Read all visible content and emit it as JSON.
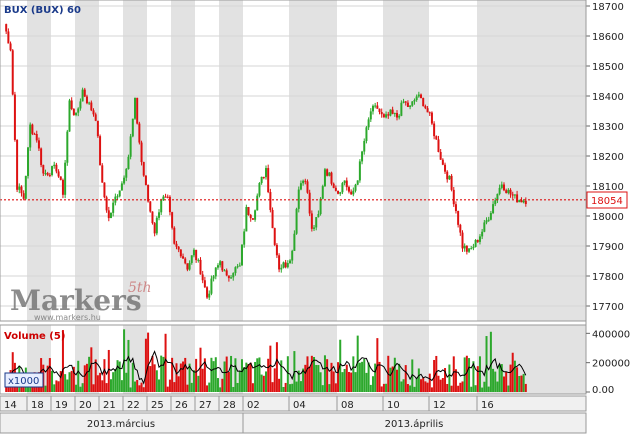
{
  "header": {
    "title": "BUX (BUX) 60"
  },
  "volume_panel": {
    "title": "Volume (5)",
    "scale_badge": "x1000"
  },
  "watermark": {
    "brand": "Markers",
    "sup": "5th",
    "url": "www.markers.hu"
  },
  "current_price_label": "18054",
  "colors": {
    "up": "#2ca82c",
    "down": "#dd1111",
    "ma": "#000000",
    "title": "#1a3a8a",
    "volume_title": "#cc0000",
    "band": "#e2e2e2"
  },
  "x_axis": {
    "day_labels": [
      "14",
      "18",
      "19",
      "20",
      "21",
      "22",
      "25",
      "26",
      "27",
      "28",
      "02",
      "04",
      "08",
      "10",
      "12",
      "16"
    ],
    "month_labels": [
      "2013.március",
      "2013.április"
    ]
  },
  "chart_data": [
    {
      "type": "candlestick",
      "title": "BUX (BUX) 60",
      "interval": "60 min",
      "yaxis": {
        "ticks": [
          17700,
          17800,
          17900,
          18000,
          18100,
          18200,
          18300,
          18400,
          18500,
          18600,
          18700
        ],
        "ylim": [
          17650,
          18720
        ],
        "position": "right"
      },
      "last_price": 18054,
      "last_price_line": "dotted red",
      "grid": true,
      "session_close": [
        [
          18640,
          18560,
          18100,
          18060
        ],
        [
          18300,
          18260,
          18140,
          18150
        ],
        [
          18160,
          18080,
          18380,
          18330
        ],
        [
          18420,
          18370,
          18330,
          18100
        ],
        [
          17990,
          18060,
          18110,
          18200
        ],
        [
          18380,
          18180,
          18050,
          17950
        ],
        [
          18060,
          18050,
          17900,
          17880
        ],
        [
          17830,
          17880,
          17820,
          17730
        ],
        [
          17800,
          17850,
          17790,
          17820
        ],
        [
          17830,
          18020,
          18000,
          18100
        ],
        [
          18160,
          17960,
          17830,
          17840
        ],
        [
          17880,
          18100,
          18130,
          17950
        ],
        [
          18000,
          18160,
          18120,
          18080
        ],
        [
          18120,
          18060,
          18130,
          18250
        ],
        [
          18350,
          18360,
          18320,
          18340
        ],
        [
          18330,
          18380,
          18360,
          18400
        ],
        [
          18380,
          18330,
          18250,
          18170
        ],
        [
          18120,
          18020,
          17900,
          17880
        ],
        [
          17910,
          17950,
          18000,
          18060
        ],
        [
          18110,
          18080,
          18060,
          18054
        ]
      ]
    },
    {
      "type": "bar",
      "title": "Volume (5)",
      "unit": "x1000",
      "yaxis": {
        "ticks": [
          0,
          200000,
          400000
        ],
        "tick_labels": [
          "0.00",
          "200000",
          "400000"
        ],
        "ylim": [
          0,
          450000
        ]
      },
      "ma_series": "Volume (5)"
    }
  ]
}
